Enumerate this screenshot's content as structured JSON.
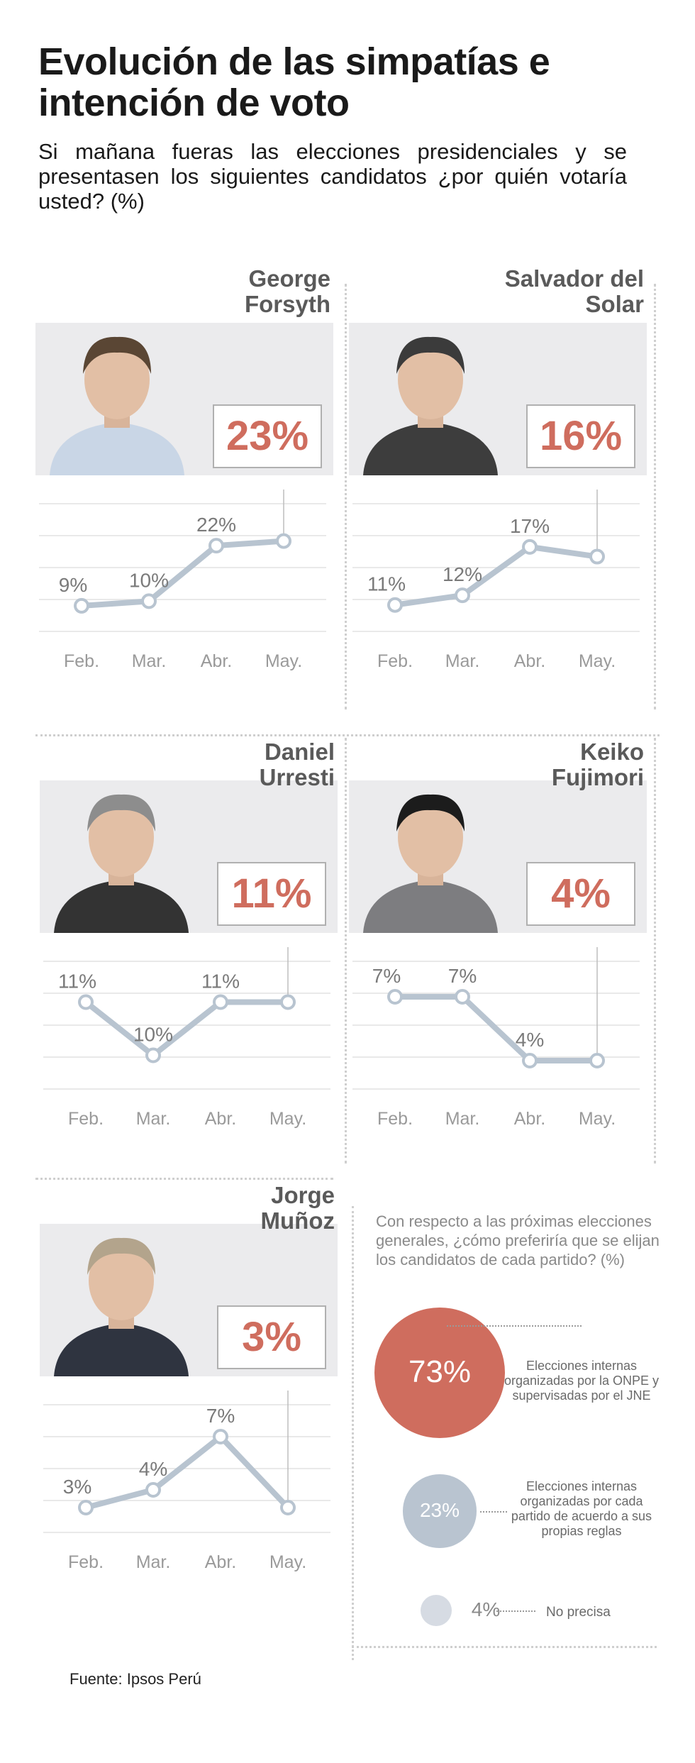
{
  "title": "Evolución de las simpatías e intención de voto",
  "subtitle": "Si mañana fueras las elecciones presidenciales y se presentasen los siguientes candidatos ¿por quién votaría usted? (%)",
  "source": "Fuente: Ipsos Perú",
  "colors": {
    "accent": "#cf6d5e",
    "line": "#b8c4d0",
    "grid": "#dcdcdc",
    "photo_bg": "#ebebed"
  },
  "chart_data": [
    {
      "type": "line",
      "name": "George Forsyth",
      "current": "23%",
      "categories": [
        "Feb.",
        "Mar.",
        "Abr.",
        "May."
      ],
      "values": [
        9,
        10,
        22,
        23
      ],
      "labels": [
        "9%",
        "10%",
        "22%",
        ""
      ],
      "ylim": [
        5,
        28
      ]
    },
    {
      "type": "line",
      "name": "Salvador del Solar",
      "current": "16%",
      "categories": [
        "Feb.",
        "Mar.",
        "Abr.",
        "May."
      ],
      "values": [
        11,
        12,
        17,
        16
      ],
      "labels": [
        "11%",
        "12%",
        "17%",
        ""
      ],
      "ylim": [
        9,
        20
      ]
    },
    {
      "type": "line",
      "name": "Daniel Urresti",
      "current": "11%",
      "categories": [
        "Feb.",
        "Mar.",
        "Abr.",
        "May."
      ],
      "values": [
        11,
        10,
        11,
        11
      ],
      "labels": [
        "11%",
        "10%",
        "11%",
        ""
      ],
      "ylim": [
        9.5,
        11.5
      ]
    },
    {
      "type": "line",
      "name": "Keiko Fujimori",
      "current": "4%",
      "categories": [
        "Feb.",
        "Mar.",
        "Abr.",
        "May."
      ],
      "values": [
        7,
        7,
        4,
        4
      ],
      "labels": [
        "7%",
        "7%",
        "4%",
        ""
      ],
      "ylim": [
        3,
        8
      ]
    },
    {
      "type": "line",
      "name": "Jorge Muñoz",
      "current": "3%",
      "categories": [
        "Feb.",
        "Mar.",
        "Abr.",
        "May."
      ],
      "values": [
        3,
        4,
        7,
        3
      ],
      "labels": [
        "3%",
        "4%",
        "7%",
        ""
      ],
      "ylim": [
        2,
        8
      ]
    },
    {
      "type": "bubble",
      "question": "Con respecto a las próximas elecciones generales, ¿cómo preferiría que se elijan los candidatos de cada partido? (%)",
      "items": [
        {
          "value": 73,
          "label": "73%",
          "text": "Elecciones internas organizadas por la ONPE y supervisadas por el JNE"
        },
        {
          "value": 23,
          "label": "23%",
          "text": "Elecciones internas organizadas por cada partido de acuerdo a sus propias reglas"
        },
        {
          "value": 4,
          "label": "4%",
          "text": "No precisa"
        }
      ]
    }
  ]
}
